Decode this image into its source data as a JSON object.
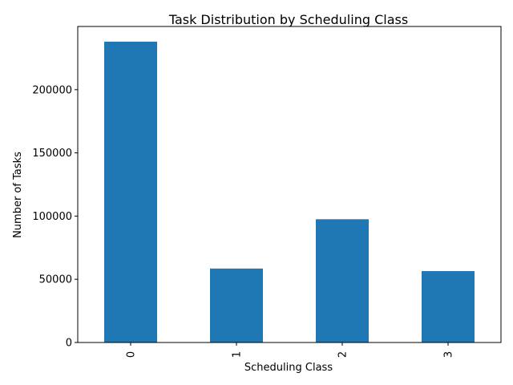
{
  "chart_data": {
    "type": "bar",
    "title": "Task Distribution by Scheduling Class",
    "xlabel": "Scheduling Class",
    "ylabel": "Number of Tasks",
    "categories": [
      "0",
      "1",
      "2",
      "3"
    ],
    "values": [
      238000,
      58500,
      97500,
      56500
    ],
    "ylim": [
      0,
      250000
    ],
    "yticks": [
      0,
      50000,
      100000,
      150000,
      200000
    ],
    "ytick_labels": [
      "0",
      "50000",
      "100000",
      "150000",
      "200000"
    ],
    "bar_color": "#1f77b4",
    "grid": false,
    "legend": "none"
  }
}
